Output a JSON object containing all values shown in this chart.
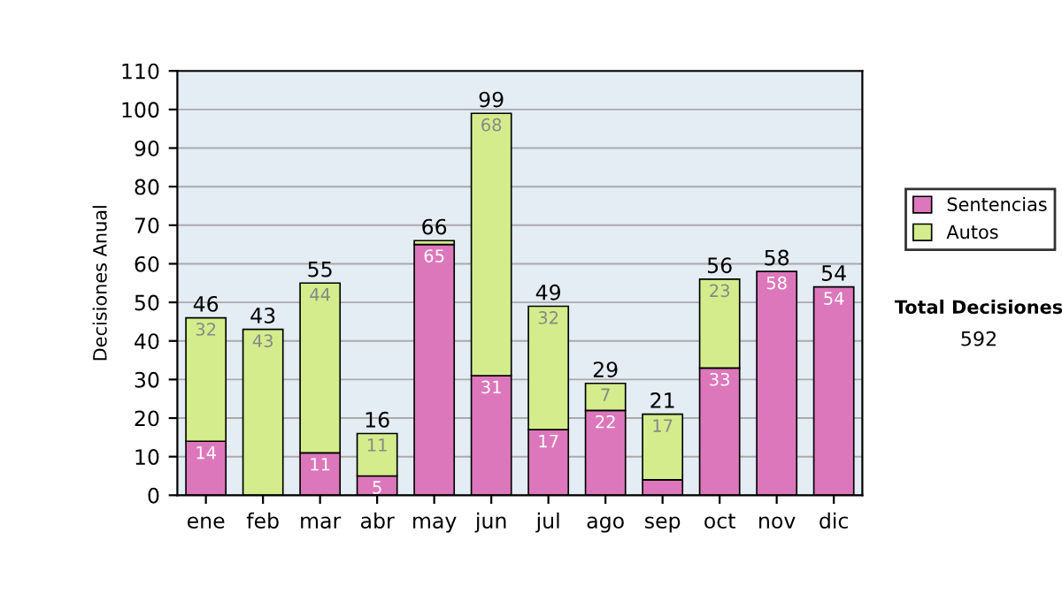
{
  "chart_data": {
    "type": "bar",
    "stacked": true,
    "ylabel": "Decisiones Anual",
    "categories": [
      "ene",
      "feb",
      "mar",
      "abr",
      "may",
      "jun",
      "jul",
      "ago",
      "sep",
      "oct",
      "nov",
      "dic"
    ],
    "series": [
      {
        "name": "Sentencias",
        "color": "#dd77bb",
        "values": [
          14,
          0,
          11,
          5,
          65,
          31,
          17,
          22,
          4,
          33,
          58,
          54
        ],
        "value_labels": [
          "14",
          null,
          "11",
          "5",
          "65",
          "31",
          "17",
          "22",
          null,
          "33",
          "58",
          "54"
        ]
      },
      {
        "name": "Autos",
        "color": "#d4ec8c",
        "values": [
          32,
          43,
          44,
          11,
          1,
          68,
          32,
          7,
          17,
          23,
          0,
          0
        ],
        "value_labels": [
          "32",
          "43",
          "44",
          "11",
          null,
          "68",
          "32",
          "7",
          "17",
          "23",
          null,
          null
        ]
      }
    ],
    "totals": [
      "46",
      "43",
      "55",
      "16",
      "66",
      "99",
      "49",
      "29",
      "21",
      "56",
      "58",
      "54"
    ],
    "ylim": [
      0,
      110
    ],
    "yticks": [
      0,
      10,
      20,
      30,
      40,
      50,
      60,
      70,
      80,
      90,
      100,
      110
    ],
    "grid": "y",
    "legend": "right",
    "annotations": [
      "Total Decisiones",
      "592"
    ]
  }
}
